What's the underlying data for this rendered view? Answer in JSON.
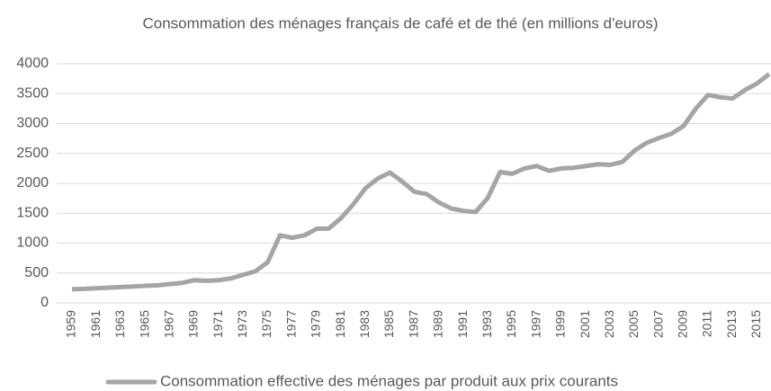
{
  "chart_data": {
    "type": "line",
    "title": "Consommation des ménages français de café et de thé (en millions d'euros)",
    "categories": [
      "1959",
      null,
      "1961",
      null,
      "1963",
      null,
      "1965",
      null,
      "1967",
      null,
      "1969",
      null,
      "1971",
      null,
      "1973",
      null,
      "1975",
      null,
      "1977",
      null,
      "1979",
      null,
      "1981",
      null,
      "1983",
      null,
      "1985",
      null,
      "1987",
      null,
      "1989",
      null,
      "1991",
      null,
      "1993",
      null,
      "1995",
      null,
      "1997",
      null,
      "1999",
      null,
      "2001",
      null,
      "2003",
      null,
      "2005",
      null,
      "2007",
      null,
      "2009",
      null,
      "2011",
      null,
      "2013",
      null,
      "2015",
      null
    ],
    "series": [
      {
        "name": "Consommation effective des ménages par produit aux prix courants",
        "color": "#a5a5a5",
        "values": [
          230,
          235,
          245,
          255,
          265,
          275,
          285,
          295,
          315,
          335,
          380,
          370,
          380,
          410,
          470,
          530,
          680,
          1130,
          1090,
          1130,
          1240,
          1245,
          1420,
          1650,
          1920,
          2080,
          2180,
          2030,
          1860,
          1820,
          1680,
          1580,
          1540,
          1520,
          1760,
          2190,
          2160,
          2250,
          2290,
          2210,
          2250,
          2260,
          2290,
          2320,
          2310,
          2360,
          2550,
          2680,
          2760,
          2830,
          2960,
          3250,
          3480,
          3440,
          3420,
          3560,
          3670,
          3830
        ]
      }
    ],
    "ylim": [
      0,
      4000
    ],
    "yticks": [
      0,
      500,
      1000,
      1500,
      2000,
      2500,
      3000,
      3500,
      4000
    ],
    "grid": true,
    "legend": "bottom"
  }
}
